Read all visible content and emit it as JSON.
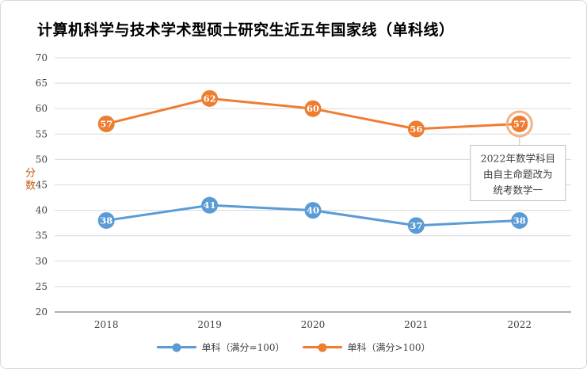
{
  "title": "计算机科学与技术学术型硕士研究生近五年国家线（单科线）",
  "chart_data": {
    "type": "line",
    "title": "计算机科学与技术学术型硕士研究生近五年国家线（单科线）",
    "categories": [
      "2018",
      "2019",
      "2020",
      "2021",
      "2022"
    ],
    "series": [
      {
        "name": "单科（满分=100）",
        "color": "#5B9BD5",
        "values": [
          38,
          41,
          40,
          37,
          38
        ]
      },
      {
        "name": "单科（满分>100）",
        "color": "#ED7D31",
        "values": [
          57,
          62,
          60,
          56,
          57
        ]
      }
    ],
    "xlabel": "",
    "ylabel": "分数",
    "ylim": [
      20,
      70
    ],
    "ytick_step": 5,
    "grid": true,
    "legend_position": "bottom",
    "colors": {
      "gridline": "#D9D9D9",
      "axis_line": "#808080",
      "tick_text": "#404040",
      "y_axis_title": "#C55A11",
      "highlight_ring": "#F4B183",
      "annotation_border": "#BFBFBF"
    },
    "annotation": {
      "text_lines": [
        "2022年数学科目",
        "由自主命题改为",
        "统考数学一"
      ],
      "target": {
        "series": 1,
        "index": 4
      }
    }
  }
}
